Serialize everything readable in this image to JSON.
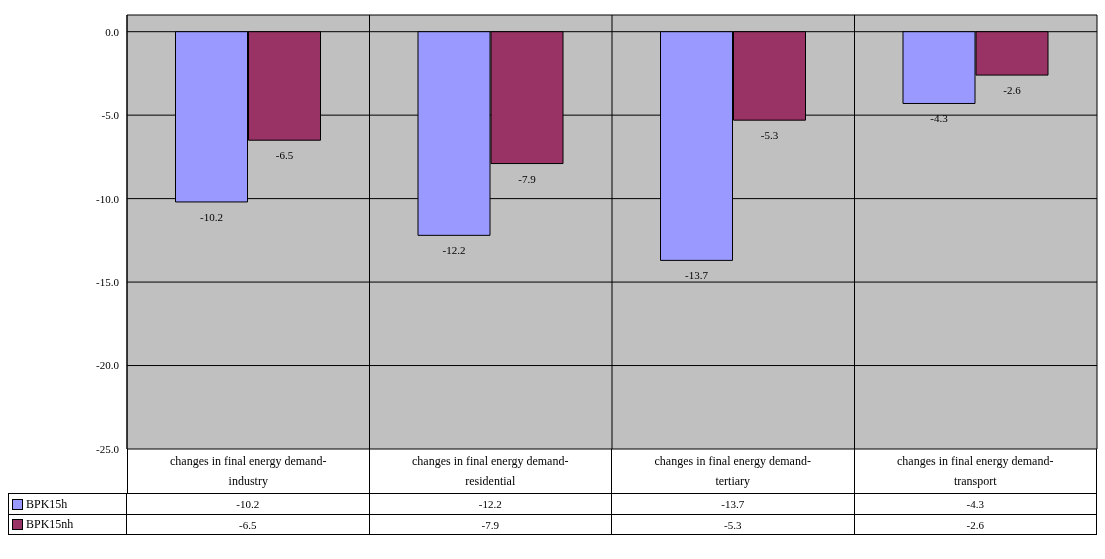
{
  "chart_data": {
    "type": "bar",
    "categories": [
      "changes in final energy demand-industry",
      "changes in final energy demand-residential",
      "changes in final energy demand-tertiary",
      "changes in final energy demand-transport"
    ],
    "series": [
      {
        "name": "BPK15h",
        "color": "#9999ff",
        "values": [
          -10.2,
          -12.2,
          -13.7,
          -4.3
        ],
        "value_labels": [
          "-10.2",
          "-12.2",
          "-13.7",
          "-4.3"
        ]
      },
      {
        "name": "BPK15nh",
        "color": "#993366",
        "values": [
          -6.5,
          -7.9,
          -5.3,
          -2.6
        ],
        "value_labels": [
          "-6.5",
          "-7.9",
          "-5.3",
          "-2.6"
        ]
      }
    ],
    "ylim": [
      -25,
      1
    ],
    "yticks": [
      {
        "value": -25,
        "label": "-25.0"
      },
      {
        "value": -20,
        "label": "-20.0"
      },
      {
        "value": -15,
        "label": "-15.0"
      },
      {
        "value": -10,
        "label": "-10.0"
      },
      {
        "value": -5,
        "label": "-5.0"
      },
      {
        "value": 0,
        "label": "0.0"
      }
    ],
    "grid": true,
    "legend": "bottom",
    "annotations": [
      "-10.2",
      "-12.2",
      "-13.7",
      "-4.3",
      "-6.5",
      "-7.9",
      "-5.3",
      "-2.6"
    ]
  }
}
